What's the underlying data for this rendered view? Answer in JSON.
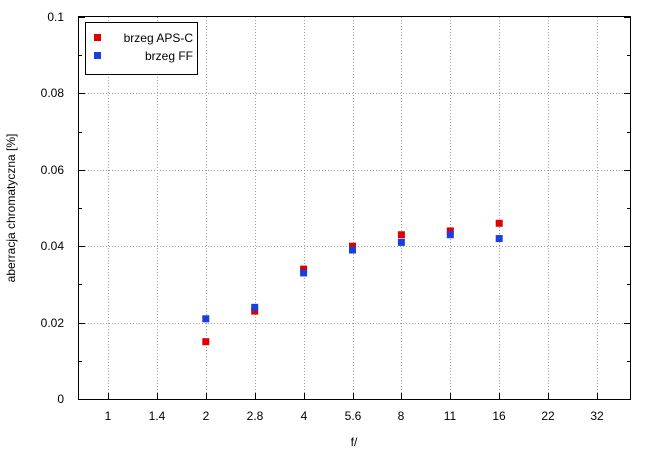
{
  "chart_data": {
    "type": "scatter",
    "xlabel": "f/",
    "ylabel": "aberracja chromatyczna [%]",
    "x_ticks": [
      "1",
      "1.4",
      "2",
      "2.8",
      "4",
      "5.6",
      "8",
      "11",
      "16",
      "22",
      "32"
    ],
    "y_ticks": [
      "0",
      "0.02",
      "0.04",
      "0.06",
      "0.08",
      "0.1"
    ],
    "ylim": [
      0,
      0.1
    ],
    "y_tick_values": [
      0,
      0.02,
      0.04,
      0.06,
      0.08,
      0.1
    ],
    "y_minor_step": 0.01,
    "grid": true,
    "legend_position": "top-left",
    "series": [
      {
        "name": "brzeg APS-C",
        "color": "#e00000",
        "marker": "square",
        "x": [
          "2",
          "2.8",
          "4",
          "5.6",
          "8",
          "11",
          "16"
        ],
        "values": [
          0.015,
          0.023,
          0.034,
          0.04,
          0.043,
          0.044,
          0.046
        ]
      },
      {
        "name": "brzeg FF",
        "color": "#1a3fe0",
        "marker": "square",
        "x": [
          "2",
          "2.8",
          "4",
          "5.6",
          "8",
          "11",
          "16"
        ],
        "values": [
          0.021,
          0.024,
          0.033,
          0.039,
          0.041,
          0.043,
          0.042
        ]
      }
    ]
  }
}
